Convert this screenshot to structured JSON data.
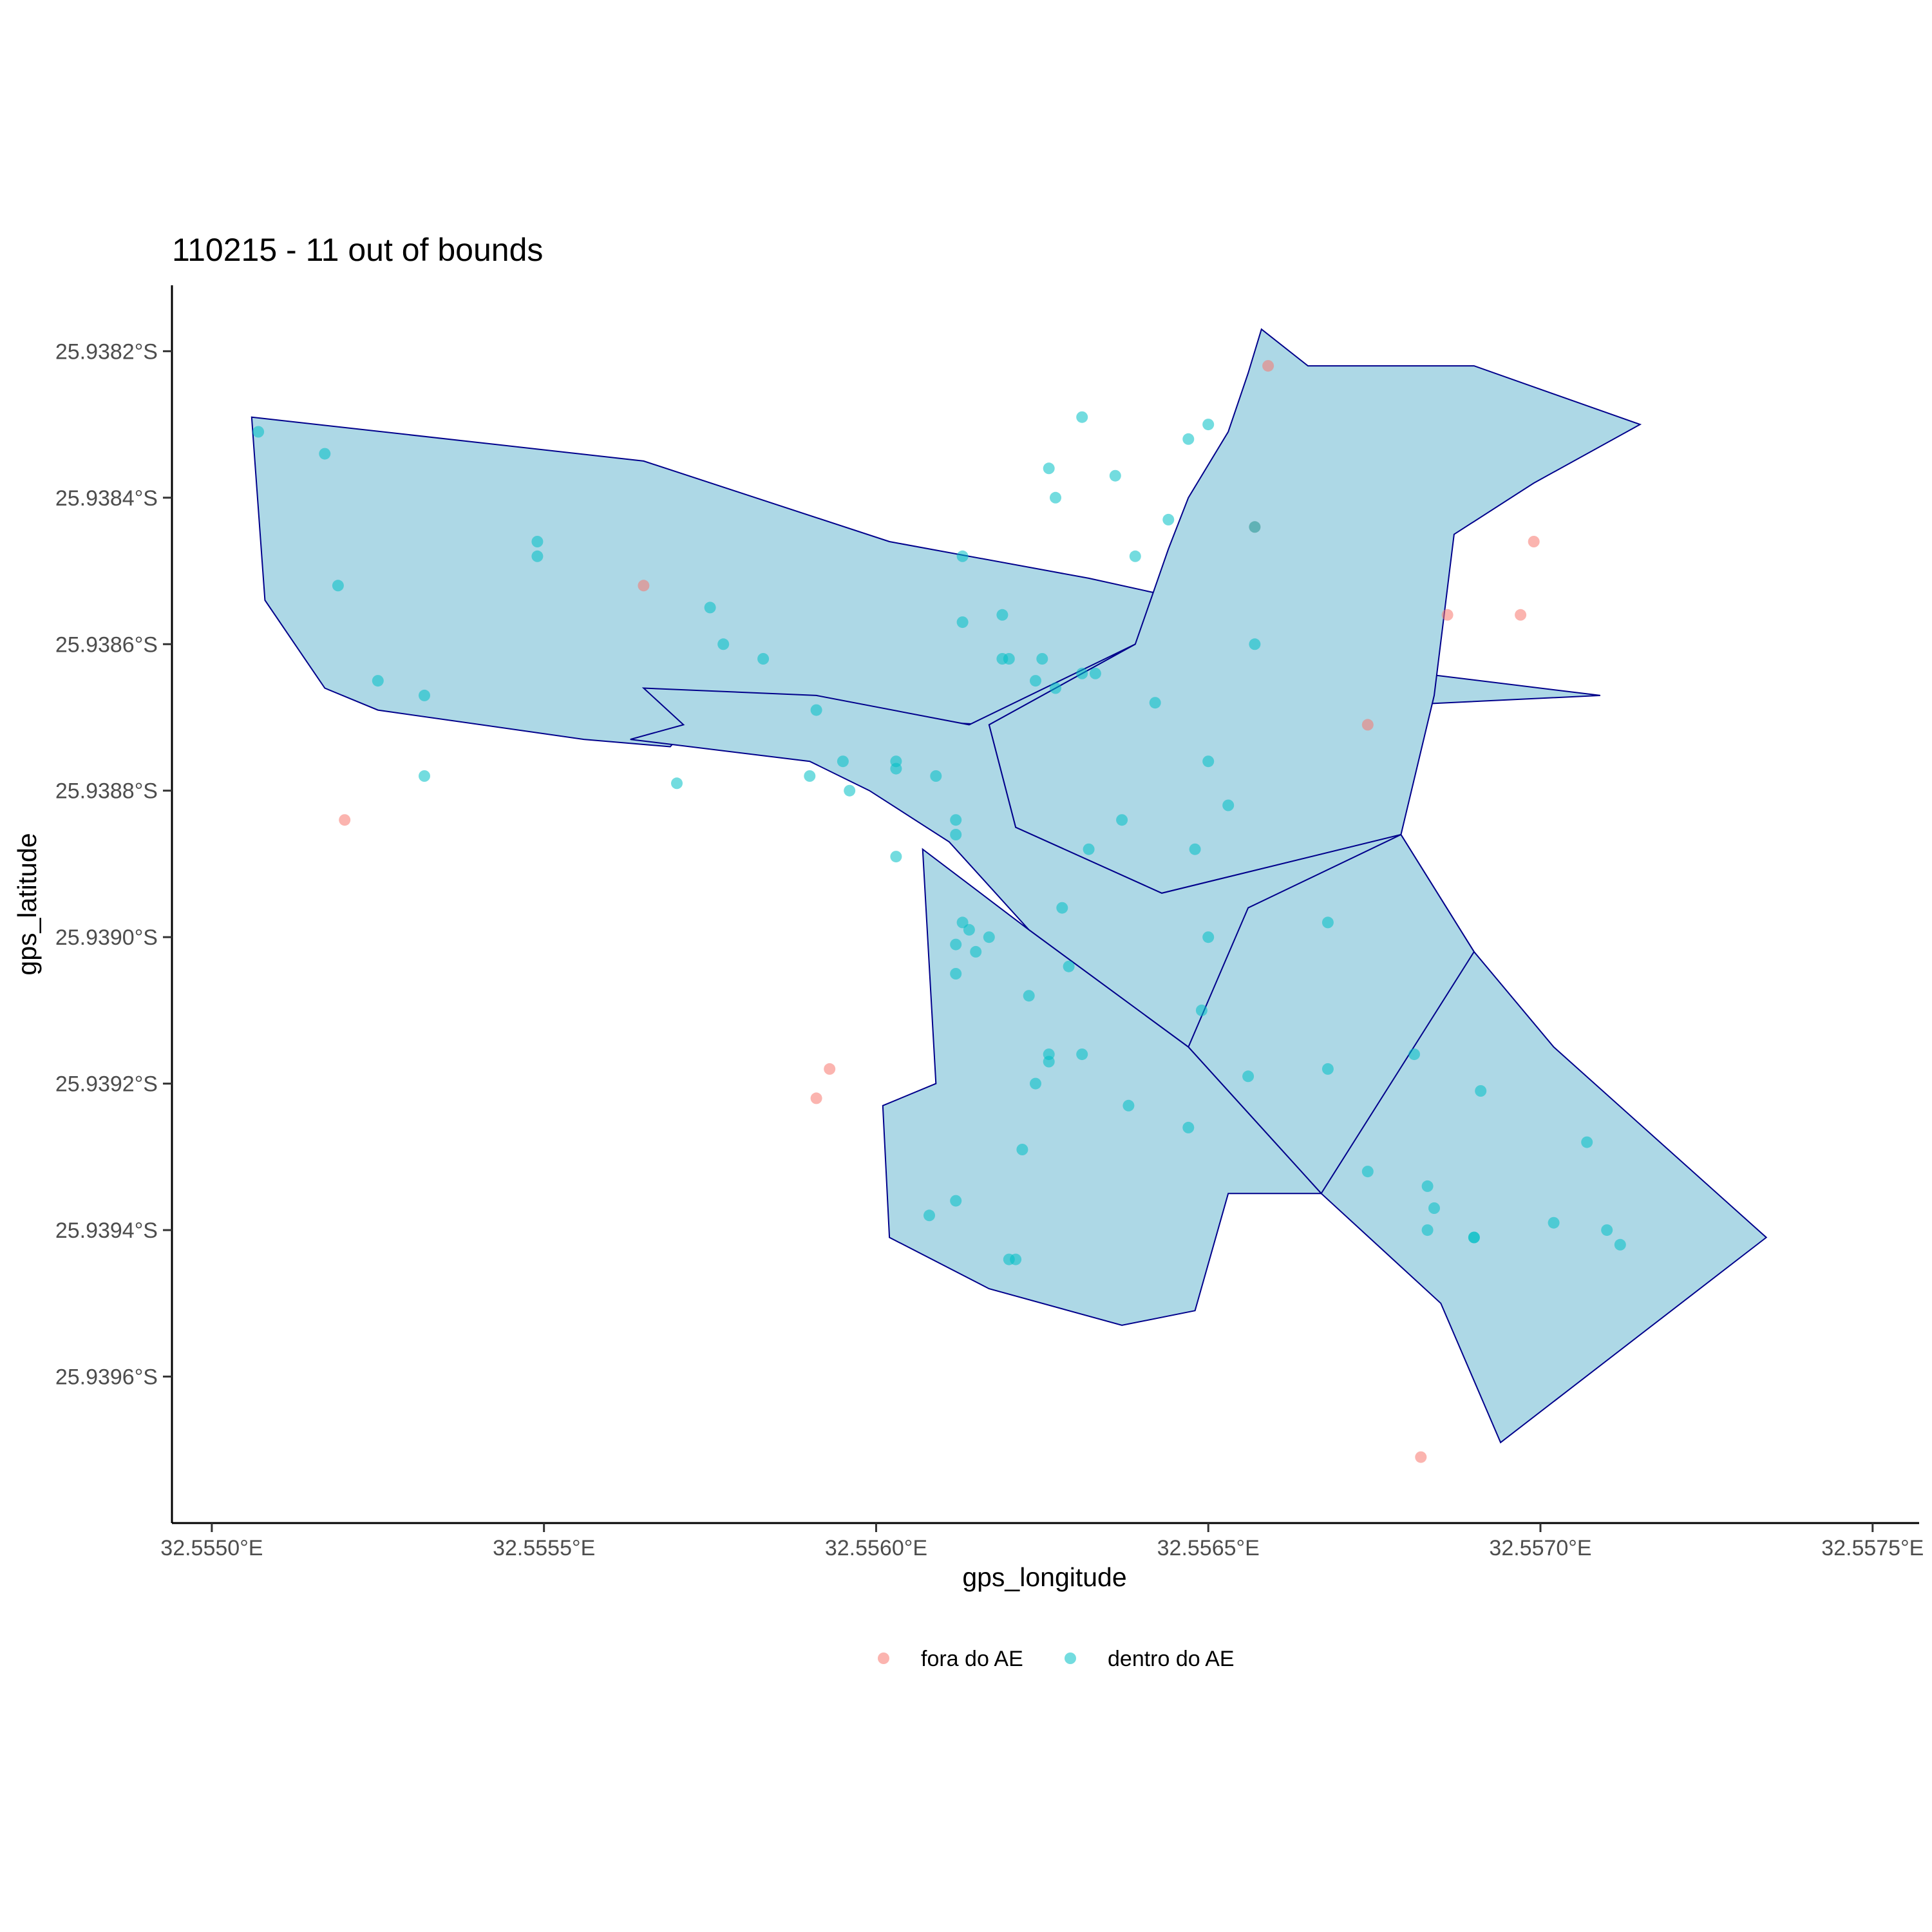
{
  "chart_data": {
    "type": "map-scatter",
    "title": "110215 - 11 out of bounds",
    "xlabel": "gps_longitude",
    "ylabel": "gps_latitude",
    "xlim": [
      32.55494,
      32.55757
    ],
    "ylim": [
      -25.9398,
      -25.93811
    ],
    "x_ticks": [
      {
        "value": 32.555,
        "label": "32.5550°E"
      },
      {
        "value": 32.5555,
        "label": "32.5555°E"
      },
      {
        "value": 32.556,
        "label": "32.5560°E"
      },
      {
        "value": 32.5565,
        "label": "32.5565°E"
      },
      {
        "value": 32.557,
        "label": "32.5570°E"
      },
      {
        "value": 32.5575,
        "label": "32.5575°E"
      }
    ],
    "y_ticks": [
      {
        "value": -25.9382,
        "label": "25.9382°S"
      },
      {
        "value": -25.9384,
        "label": "25.9384°S"
      },
      {
        "value": -25.9386,
        "label": "25.9386°S"
      },
      {
        "value": -25.9388,
        "label": "25.9388°S"
      },
      {
        "value": -25.939,
        "label": "25.9390°S"
      },
      {
        "value": -25.9392,
        "label": "25.9392°S"
      },
      {
        "value": -25.9394,
        "label": "25.9394°S"
      },
      {
        "value": -25.9396,
        "label": "25.9396°S"
      }
    ],
    "grid": false,
    "legend_position": "bottom",
    "polygon_fill": "#add8e6",
    "polygon_stroke": "#00008b",
    "polygons": [
      [
        [
          32.55506,
          -25.93829
        ],
        [
          32.55565,
          -25.93835
        ],
        [
          32.55602,
          -25.93846
        ],
        [
          32.55632,
          -25.93851
        ],
        [
          32.55652,
          -25.93855
        ],
        [
          32.55673,
          -25.93863
        ],
        [
          32.55709,
          -25.93867
        ],
        [
          32.55617,
          -25.93871
        ],
        [
          32.55574,
          -25.93869
        ],
        [
          32.55569,
          -25.93874
        ],
        [
          32.55556,
          -25.93873
        ],
        [
          32.55525,
          -25.93869
        ],
        [
          32.55517,
          -25.93866
        ],
        [
          32.55508,
          -25.93854
        ]
      ],
      [
        [
          32.55617,
          -25.93871
        ],
        [
          32.55639,
          -25.9386
        ],
        [
          32.55644,
          -25.93847
        ],
        [
          32.55647,
          -25.9384
        ],
        [
          32.55653,
          -25.93831
        ],
        [
          32.55656,
          -25.93823
        ],
        [
          32.55658,
          -25.93817
        ],
        [
          32.55665,
          -25.93822
        ],
        [
          32.5569,
          -25.93822
        ],
        [
          32.55715,
          -25.9383
        ],
        [
          32.55699,
          -25.93838
        ],
        [
          32.55687,
          -25.93845
        ],
        [
          32.55684,
          -25.93867
        ],
        [
          32.55679,
          -25.93886
        ],
        [
          32.55643,
          -25.93894
        ],
        [
          32.55621,
          -25.93885
        ]
      ],
      [
        [
          32.55639,
          -25.9386
        ],
        [
          32.55617,
          -25.93871
        ],
        [
          32.55621,
          -25.93885
        ],
        [
          32.55643,
          -25.93894
        ],
        [
          32.55679,
          -25.93886
        ],
        [
          32.5569,
          -25.93902
        ],
        [
          32.55702,
          -25.93915
        ],
        [
          32.55734,
          -25.93941
        ],
        [
          32.55694,
          -25.93969
        ],
        [
          32.55685,
          -25.9395
        ],
        [
          32.55667,
          -25.93935
        ],
        [
          32.55647,
          -25.93915
        ],
        [
          32.55623,
          -25.93899
        ],
        [
          32.55611,
          -25.93887
        ],
        [
          32.55599,
          -25.9388
        ],
        [
          32.5559,
          -25.93876
        ],
        [
          32.55563,
          -25.93873
        ],
        [
          32.55571,
          -25.93871
        ],
        [
          32.55565,
          -25.93866
        ],
        [
          32.55591,
          -25.93867
        ],
        [
          32.55614,
          -25.93871
        ]
      ],
      [
        [
          32.55656,
          -25.93896
        ],
        [
          32.55679,
          -25.93886
        ],
        [
          32.5569,
          -25.93902
        ],
        [
          32.55667,
          -25.93935
        ],
        [
          32.55647,
          -25.93915
        ]
      ],
      [
        [
          32.55607,
          -25.93888
        ],
        [
          32.55609,
          -25.9392
        ],
        [
          32.55601,
          -25.93923
        ],
        [
          32.55602,
          -25.93941
        ],
        [
          32.55617,
          -25.93948
        ],
        [
          32.55637,
          -25.93953
        ],
        [
          32.55648,
          -25.93951
        ],
        [
          32.55653,
          -25.93935
        ],
        [
          32.55667,
          -25.93935
        ],
        [
          32.55647,
          -25.93915
        ],
        [
          32.55623,
          -25.93899
        ]
      ]
    ],
    "series": [
      {
        "name": "fora do AE",
        "color": "#f8766d",
        "points": [
          [
            32.5552,
            -25.93884
          ],
          [
            32.55565,
            -25.93852
          ],
          [
            32.55657,
            -25.93844
          ],
          [
            32.55659,
            -25.93822
          ],
          [
            32.55699,
            -25.93846
          ],
          [
            32.55697,
            -25.93856
          ],
          [
            32.55686,
            -25.93856
          ],
          [
            32.55674,
            -25.93871
          ],
          [
            32.55593,
            -25.93918
          ],
          [
            32.55591,
            -25.93922
          ],
          [
            32.55682,
            -25.93971
          ]
        ]
      },
      {
        "name": "dentro do AE",
        "color": "#00bfc4",
        "points": [
          [
            32.55507,
            -25.93831
          ],
          [
            32.55517,
            -25.93834
          ],
          [
            32.55519,
            -25.93852
          ],
          [
            32.55525,
            -25.93865
          ],
          [
            32.55532,
            -25.93867
          ],
          [
            32.55532,
            -25.93878
          ],
          [
            32.55549,
            -25.93846
          ],
          [
            32.55549,
            -25.93848
          ],
          [
            32.55575,
            -25.93855
          ],
          [
            32.55577,
            -25.9386
          ],
          [
            32.55583,
            -25.93862
          ],
          [
            32.5557,
            -25.93879
          ],
          [
            32.55591,
            -25.93869
          ],
          [
            32.55595,
            -25.93876
          ],
          [
            32.5559,
            -25.93878
          ],
          [
            32.55596,
            -25.9388
          ],
          [
            32.55603,
            -25.93877
          ],
          [
            32.55603,
            -25.93876
          ],
          [
            32.55609,
            -25.93878
          ],
          [
            32.55603,
            -25.93889
          ],
          [
            32.55613,
            -25.93898
          ],
          [
            32.55612,
            -25.93901
          ],
          [
            32.55615,
            -25.93902
          ],
          [
            32.55617,
            -25.939
          ],
          [
            32.55613,
            -25.93857
          ],
          [
            32.55613,
            -25.93848
          ],
          [
            32.55619,
            -25.93856
          ],
          [
            32.55627,
            -25.9384
          ],
          [
            32.55626,
            -25.93836
          ],
          [
            32.55631,
            -25.93829
          ],
          [
            32.55636,
            -25.93837
          ],
          [
            32.55639,
            -25.93848
          ],
          [
            32.55644,
            -25.93843
          ],
          [
            32.55647,
            -25.93832
          ],
          [
            32.5565,
            -25.9383
          ],
          [
            32.55657,
            -25.93844
          ],
          [
            32.55657,
            -25.9386
          ],
          [
            32.55619,
            -25.93862
          ],
          [
            32.5562,
            -25.93862
          ],
          [
            32.55624,
            -25.93865
          ],
          [
            32.55625,
            -25.93862
          ],
          [
            32.55627,
            -25.93866
          ],
          [
            32.55631,
            -25.93864
          ],
          [
            32.55633,
            -25.93864
          ],
          [
            32.55642,
            -25.93868
          ],
          [
            32.5565,
            -25.93876
          ],
          [
            32.55653,
            -25.93882
          ],
          [
            32.55648,
            -25.93888
          ],
          [
            32.55612,
            -25.93884
          ],
          [
            32.55612,
            -25.93886
          ],
          [
            32.55637,
            -25.93884
          ],
          [
            32.55632,
            -25.93888
          ],
          [
            32.55628,
            -25.93896
          ],
          [
            32.55614,
            -25.93899
          ],
          [
            32.55612,
            -25.93905
          ],
          [
            32.55623,
            -25.93908
          ],
          [
            32.55629,
            -25.93904
          ],
          [
            32.55626,
            -25.93917
          ],
          [
            32.55626,
            -25.93916
          ],
          [
            32.55631,
            -25.93916
          ],
          [
            32.55638,
            -25.93923
          ],
          [
            32.55656,
            -25.93919
          ],
          [
            32.5565,
            -25.939
          ],
          [
            32.55649,
            -25.9391
          ],
          [
            32.55624,
            -25.9392
          ],
          [
            32.55622,
            -25.93929
          ],
          [
            32.55612,
            -25.93936
          ],
          [
            32.55608,
            -25.93938
          ],
          [
            32.55621,
            -25.93944
          ],
          [
            32.5562,
            -25.93944
          ],
          [
            32.55647,
            -25.93926
          ],
          [
            32.55668,
            -25.93898
          ],
          [
            32.55681,
            -25.93916
          ],
          [
            32.55691,
            -25.93921
          ],
          [
            32.55707,
            -25.93928
          ],
          [
            32.55683,
            -25.93934
          ],
          [
            32.55684,
            -25.93937
          ],
          [
            32.55683,
            -25.9394
          ],
          [
            32.5569,
            -25.93941
          ],
          [
            32.5569,
            -25.93941
          ],
          [
            32.55702,
            -25.93939
          ],
          [
            32.5571,
            -25.9394
          ],
          [
            32.55712,
            -25.93942
          ],
          [
            32.55674,
            -25.93932
          ],
          [
            32.55668,
            -25.93918
          ]
        ]
      }
    ]
  }
}
